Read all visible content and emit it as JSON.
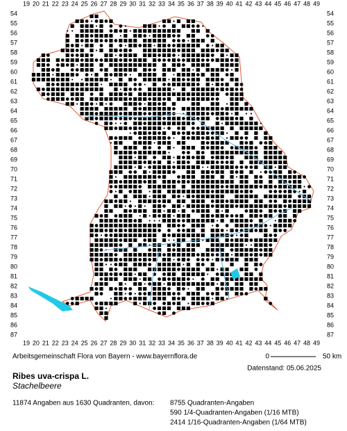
{
  "map": {
    "columns": [
      19,
      20,
      21,
      22,
      23,
      24,
      25,
      26,
      27,
      28,
      29,
      30,
      31,
      32,
      33,
      34,
      35,
      36,
      37,
      38,
      39,
      40,
      41,
      42,
      43,
      44,
      45,
      46,
      47,
      48,
      49
    ],
    "rows": [
      54,
      55,
      56,
      57,
      58,
      59,
      60,
      61,
      62,
      63,
      64,
      65,
      66,
      67,
      68,
      69,
      70,
      71,
      72,
      73,
      74,
      75,
      76,
      77,
      78,
      79,
      80,
      81,
      82,
      83,
      84,
      85,
      86,
      87
    ],
    "credit": "Arbeitsgemeinschaft Flora von Bayern - www.bayernflora.de",
    "scale": {
      "start": "0",
      "end": "50 km"
    },
    "date": "Datenstand: 05.06.2025",
    "species": "Ribes uva-crispa L.",
    "common_name": "Stachelbeere",
    "summary": "11874 Angaben aus 1630 Quadranten, davon:",
    "details": [
      "8755 Quadranten-Angaben",
      "590 1/4-Quadranten-Angaben (1/16 MTB)",
      "2414 1/16-Quadranten-Angaben (1/64 MTB)"
    ]
  }
}
